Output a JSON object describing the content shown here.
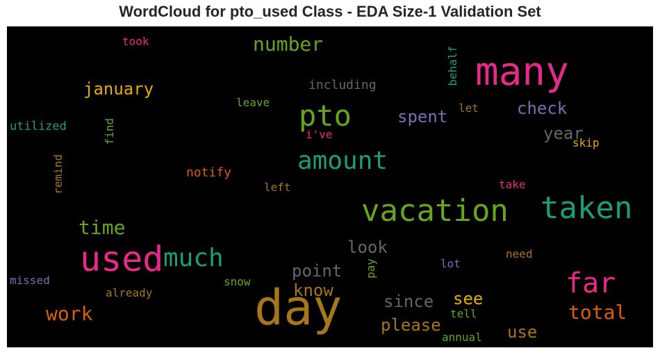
{
  "chart_data": {
    "type": "wordcloud",
    "title": "WordCloud for pto_used Class - EDA Size-1 Validation Set",
    "background": "#000000",
    "words": [
      {
        "text": "day",
        "color": "#a6761d"
      },
      {
        "text": "many",
        "color": "#e7298a"
      },
      {
        "text": "used",
        "color": "#e7298a"
      },
      {
        "text": "vacation",
        "color": "#66a61e"
      },
      {
        "text": "taken",
        "color": "#1b9e77"
      },
      {
        "text": "far",
        "color": "#e7298a"
      },
      {
        "text": "pto",
        "color": "#66a61e"
      },
      {
        "text": "amount",
        "color": "#1b9e77"
      },
      {
        "text": "much",
        "color": "#1b9e77"
      },
      {
        "text": "number",
        "color": "#66a61e"
      },
      {
        "text": "time",
        "color": "#66a61e"
      },
      {
        "text": "work",
        "color": "#d95f02"
      },
      {
        "text": "total",
        "color": "#d95f02"
      },
      {
        "text": "january",
        "color": "#e6ab02"
      },
      {
        "text": "point",
        "color": "#666666"
      },
      {
        "text": "look",
        "color": "#666666"
      },
      {
        "text": "check",
        "color": "#7570b3"
      },
      {
        "text": "spent",
        "color": "#7570b3"
      },
      {
        "text": "year",
        "color": "#666666"
      },
      {
        "text": "since",
        "color": "#666666"
      },
      {
        "text": "please",
        "color": "#a6761d"
      },
      {
        "text": "know",
        "color": "#a6761d"
      },
      {
        "text": "see",
        "color": "#e6ab02"
      },
      {
        "text": "use",
        "color": "#a6761d"
      },
      {
        "text": "including",
        "color": "#666666"
      },
      {
        "text": "utilized",
        "color": "#1b9e77"
      },
      {
        "text": "find",
        "color": "#66a61e"
      },
      {
        "text": "remind",
        "color": "#a6761d"
      },
      {
        "text": "notify",
        "color": "#d95f02"
      },
      {
        "text": "left",
        "color": "#a6761d"
      },
      {
        "text": "leave",
        "color": "#66a61e"
      },
      {
        "text": "i've",
        "color": "#e7298a"
      },
      {
        "text": "took",
        "color": "#e7298a"
      },
      {
        "text": "behalf",
        "color": "#1b9e77"
      },
      {
        "text": "let",
        "color": "#a6761d"
      },
      {
        "text": "skip",
        "color": "#e6ab02"
      },
      {
        "text": "take",
        "color": "#e7298a"
      },
      {
        "text": "need",
        "color": "#a6761d"
      },
      {
        "text": "lot",
        "color": "#7570b3"
      },
      {
        "text": "pay",
        "color": "#66a61e"
      },
      {
        "text": "tell",
        "color": "#66a61e"
      },
      {
        "text": "annual",
        "color": "#66a61e"
      },
      {
        "text": "missed",
        "color": "#7570b3"
      },
      {
        "text": "already",
        "color": "#a6761d"
      },
      {
        "text": "snow",
        "color": "#66a61e"
      }
    ]
  }
}
